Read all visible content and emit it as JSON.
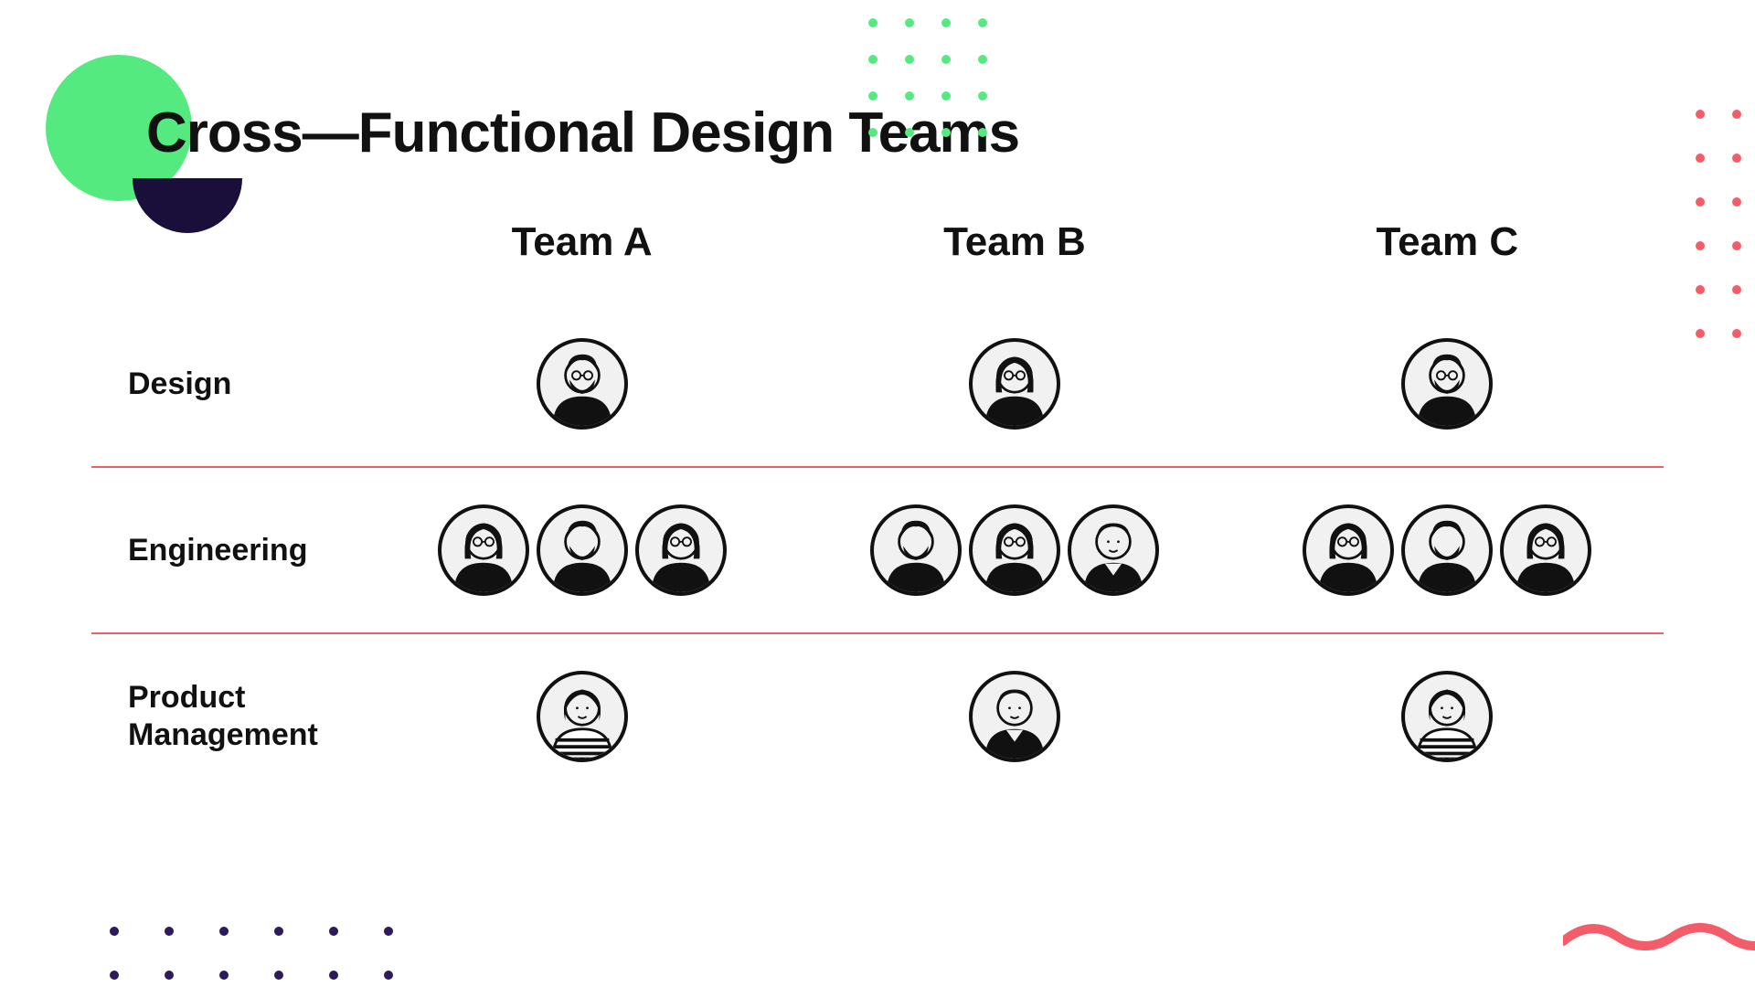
{
  "title": "Cross—Functional Design Teams",
  "decor": {
    "green_circle_color": "#54ea7f",
    "dark_half_color": "#1a0e3a",
    "dot_green": "#54ea7f",
    "dot_red": "#f35d6a",
    "dot_purple": "#2d1a5a",
    "divider_color": "#f35d6a",
    "wave_color": "#f35d6a"
  },
  "teams": [
    "Team A",
    "Team B",
    "Team C"
  ],
  "roles": [
    "Design",
    "Engineering",
    "Product\nManagement"
  ],
  "matrix": [
    [
      [
        "m-beard-glasses"
      ],
      [
        "f-long-glasses"
      ],
      [
        "m-beard-glasses"
      ]
    ],
    [
      [
        "f-long-glasses",
        "m-beard",
        "f-long-glasses"
      ],
      [
        "m-beard",
        "f-long-glasses",
        "m-short"
      ],
      [
        "f-long-glasses",
        "m-beard",
        "f-long-glasses"
      ]
    ],
    [
      [
        "f-wavy"
      ],
      [
        "m-short"
      ],
      [
        "f-wavy"
      ]
    ]
  ]
}
